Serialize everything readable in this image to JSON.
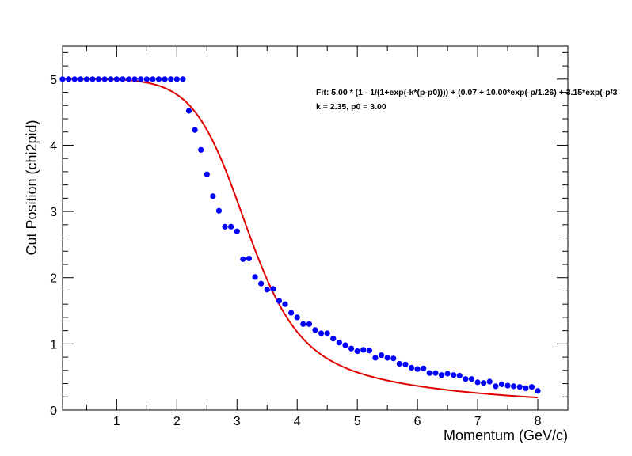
{
  "chart_data": {
    "type": "scatter",
    "xlabel": "Momentum (GeV/c)",
    "ylabel": "Cut Position (chi2pid)",
    "xlim": [
      0.1,
      8.5
    ],
    "ylim": [
      0,
      5.5
    ],
    "x_ticks": [
      "1",
      "2",
      "3",
      "4",
      "5",
      "6",
      "7",
      "8"
    ],
    "y_ticks": [
      "0",
      "1",
      "2",
      "3",
      "4",
      "5"
    ],
    "annotations": [
      "Fit: 5.00 * (1 - 1/(1+exp(-k*(p-p0)))) + (0.07 + 10.00*exp(-p/1.26) + 3.15*exp(-p/3",
      "k = 2.35, p0 = 3.00"
    ],
    "fit_params": {
      "amplitude": 5.0,
      "k": 2.35,
      "p0": 3.0,
      "c0": 0.07,
      "a1": 10.0,
      "t1": 1.26,
      "a2": 3.15,
      "t2": 3.0
    },
    "fit_range": [
      0.1,
      8.0
    ],
    "series": [
      {
        "marker_color": "#0000ff",
        "x": [
          0.1,
          0.2,
          0.3,
          0.4,
          0.5,
          0.6,
          0.7,
          0.8,
          0.9,
          1.0,
          1.1,
          1.2,
          1.3,
          1.4,
          1.5,
          1.6,
          1.7,
          1.8,
          1.9,
          2.0,
          2.1,
          2.2,
          2.3,
          2.4,
          2.5,
          2.6,
          2.7,
          2.8,
          2.9,
          3.0,
          3.1,
          3.2,
          3.3,
          3.4,
          3.5,
          3.6,
          3.7,
          3.8,
          3.9,
          4.0,
          4.1,
          4.2,
          4.3,
          4.4,
          4.5,
          4.6,
          4.7,
          4.8,
          4.9,
          5.0,
          5.1,
          5.2,
          5.3,
          5.4,
          5.5,
          5.6,
          5.7,
          5.8,
          5.9,
          6.0,
          6.1,
          6.2,
          6.3,
          6.4,
          6.5,
          6.6,
          6.7,
          6.8,
          6.9,
          7.0,
          7.1,
          7.2,
          7.3,
          7.4,
          7.5,
          7.6,
          7.7,
          7.8,
          7.9,
          8.0
        ],
        "y": [
          5.0,
          5.0,
          5.0,
          5.0,
          5.0,
          5.0,
          5.0,
          5.0,
          5.0,
          5.0,
          5.0,
          5.0,
          5.0,
          5.0,
          5.0,
          5.0,
          5.0,
          5.0,
          5.0,
          5.0,
          5.0,
          4.52,
          4.23,
          3.93,
          3.56,
          3.23,
          3.01,
          2.77,
          2.77,
          2.7,
          2.28,
          2.29,
          2.01,
          1.91,
          1.82,
          1.83,
          1.65,
          1.6,
          1.47,
          1.4,
          1.3,
          1.3,
          1.21,
          1.16,
          1.16,
          1.08,
          1.02,
          0.98,
          0.93,
          0.89,
          0.91,
          0.9,
          0.79,
          0.83,
          0.79,
          0.78,
          0.7,
          0.69,
          0.64,
          0.62,
          0.63,
          0.56,
          0.56,
          0.53,
          0.55,
          0.53,
          0.52,
          0.47,
          0.47,
          0.42,
          0.41,
          0.43,
          0.36,
          0.39,
          0.37,
          0.36,
          0.35,
          0.33,
          0.35,
          0.29
        ]
      }
    ],
    "fit_color": "#e00000"
  }
}
